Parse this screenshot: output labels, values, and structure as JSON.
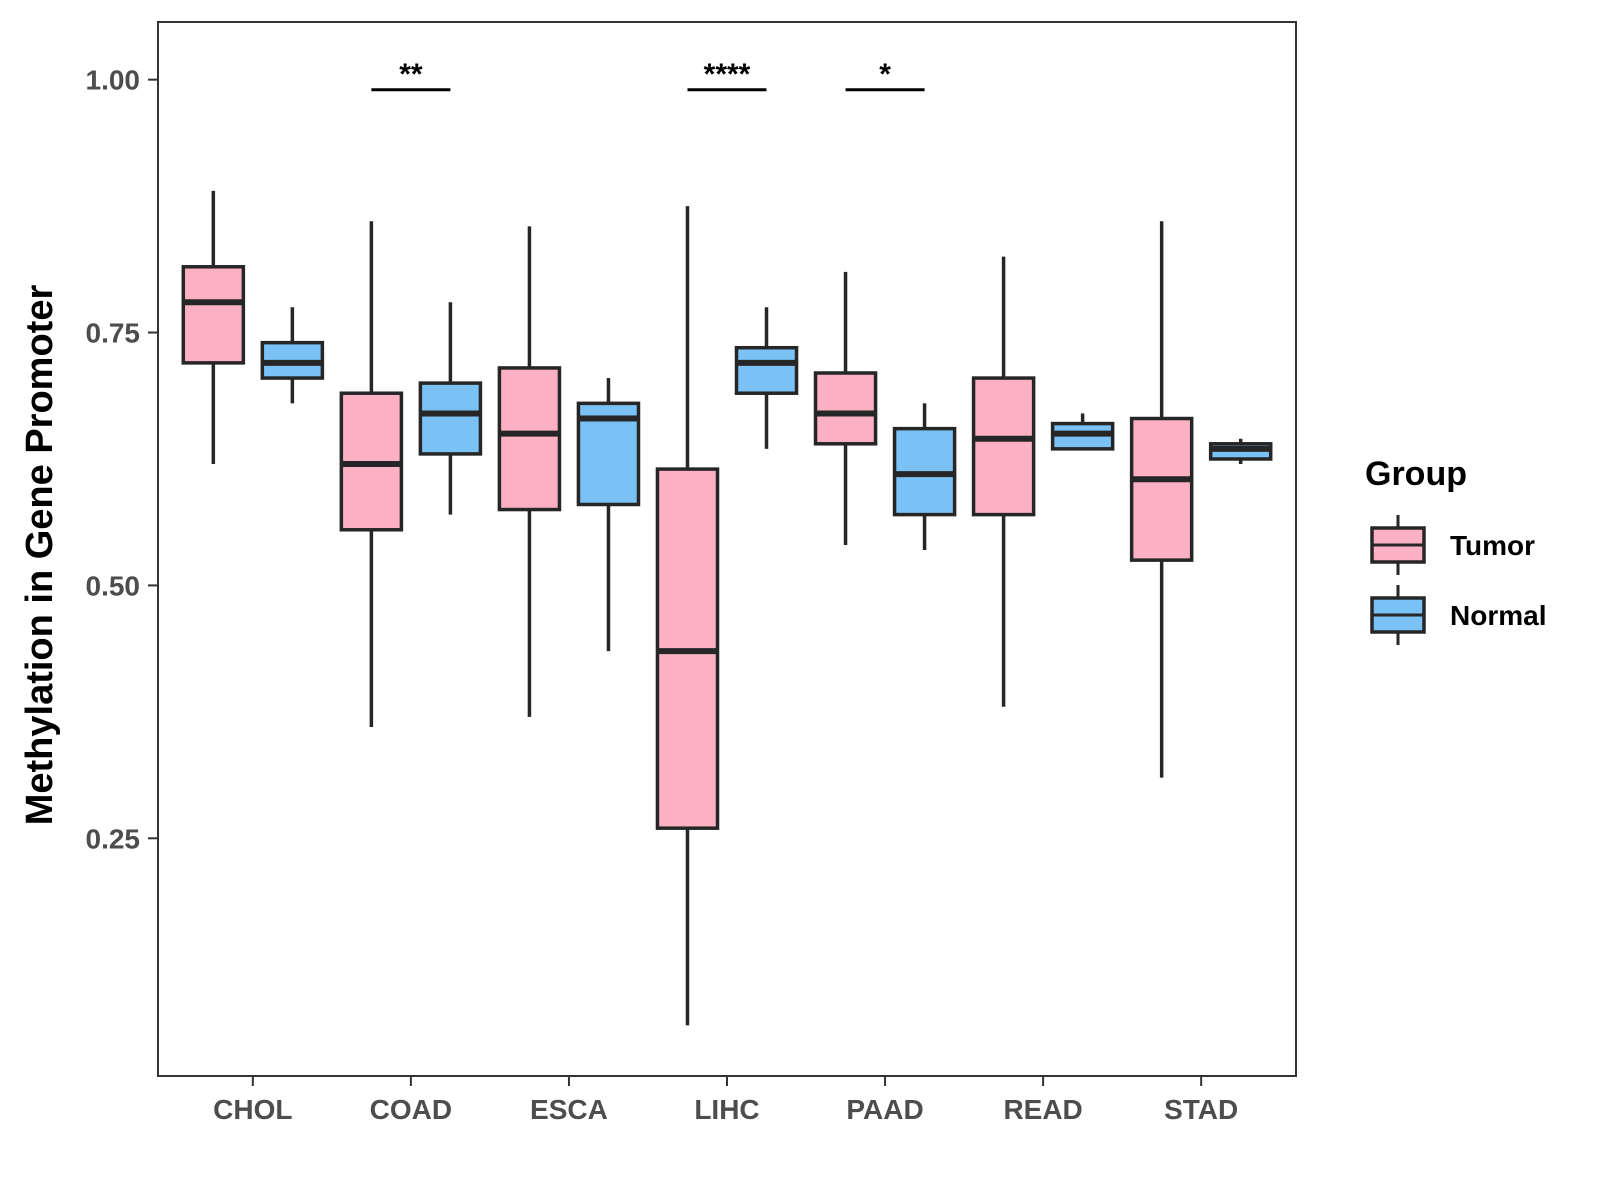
{
  "chart_data": {
    "type": "boxplot",
    "ylabel": "Methylation in Gene Promoter",
    "xlabel": "",
    "ylim": [
      0.015,
      1.057
    ],
    "yticks": [
      0.25,
      0.5,
      0.75,
      1.0
    ],
    "ytick_labels": [
      "0.25",
      "0.50",
      "0.75",
      "1.00"
    ],
    "categories": [
      "CHOL",
      "COAD",
      "ESCA",
      "LIHC",
      "PAAD",
      "READ",
      "STAD"
    ],
    "legend": {
      "title": "Group",
      "position": "right"
    },
    "series": [
      {
        "name": "Tumor",
        "color": "#FBB1C3",
        "boxes": [
          {
            "min": 0.62,
            "q1": 0.72,
            "median": 0.78,
            "q3": 0.815,
            "max": 0.89
          },
          {
            "min": 0.36,
            "q1": 0.555,
            "median": 0.62,
            "q3": 0.69,
            "max": 0.86
          },
          {
            "min": 0.37,
            "q1": 0.575,
            "median": 0.65,
            "q3": 0.715,
            "max": 0.855
          },
          {
            "min": 0.065,
            "q1": 0.26,
            "median": 0.435,
            "q3": 0.615,
            "max": 0.875
          },
          {
            "min": 0.54,
            "q1": 0.64,
            "median": 0.67,
            "q3": 0.71,
            "max": 0.81
          },
          {
            "min": 0.38,
            "q1": 0.57,
            "median": 0.645,
            "q3": 0.705,
            "max": 0.825
          },
          {
            "min": 0.31,
            "q1": 0.525,
            "median": 0.605,
            "q3": 0.665,
            "max": 0.86
          }
        ]
      },
      {
        "name": "Normal",
        "color": "#7AC1F6",
        "boxes": [
          {
            "min": 0.68,
            "q1": 0.705,
            "median": 0.72,
            "q3": 0.74,
            "max": 0.775
          },
          {
            "min": 0.57,
            "q1": 0.63,
            "median": 0.67,
            "q3": 0.7,
            "max": 0.78
          },
          {
            "min": 0.435,
            "q1": 0.58,
            "median": 0.665,
            "q3": 0.68,
            "max": 0.705
          },
          {
            "min": 0.635,
            "q1": 0.69,
            "median": 0.72,
            "q3": 0.735,
            "max": 0.775
          },
          {
            "min": 0.535,
            "q1": 0.57,
            "median": 0.61,
            "q3": 0.655,
            "max": 0.68
          },
          {
            "min": 0.635,
            "q1": 0.635,
            "median": 0.65,
            "q3": 0.66,
            "max": 0.67
          },
          {
            "min": 0.62,
            "q1": 0.625,
            "median": 0.635,
            "q3": 0.64,
            "max": 0.645
          }
        ]
      }
    ],
    "significance": [
      {
        "category": "COAD",
        "label": "**",
        "y": 0.99
      },
      {
        "category": "LIHC",
        "label": "****",
        "y": 0.99
      },
      {
        "category": "PAAD",
        "label": "*",
        "y": 0.99
      }
    ]
  }
}
